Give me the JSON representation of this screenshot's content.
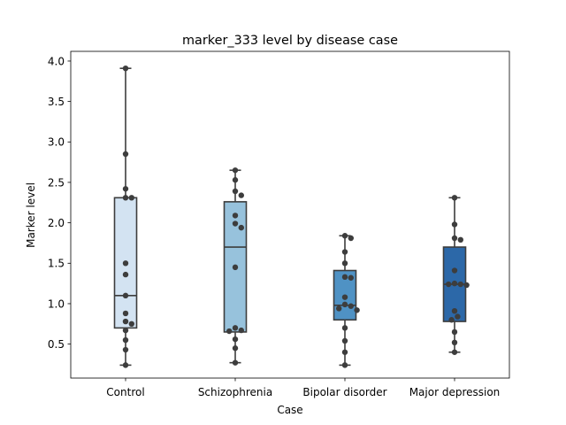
{
  "chart_data": {
    "type": "box",
    "title": "marker_333 level by disease case",
    "xlabel": "Case",
    "ylabel": "Marker level",
    "ylim": [
      0.08,
      4.12
    ],
    "yticks": [
      0.5,
      1.0,
      1.5,
      2.0,
      2.5,
      3.0,
      3.5,
      4.0
    ],
    "yticklabels": [
      "0.5",
      "1.0",
      "1.5",
      "2.0",
      "2.5",
      "3.0",
      "3.5",
      "4.0"
    ],
    "grid": false,
    "categories": [
      "Control",
      "Schizophrenia",
      "Bipolar disorder",
      "Major depression"
    ],
    "colors": [
      "#d3e3f2",
      "#97c2dc",
      "#4f92c4",
      "#2c68a8"
    ],
    "boxes": [
      {
        "category": "Control",
        "whisker_low": 0.24,
        "q1": 0.7,
        "median": 1.1,
        "q3": 2.31,
        "whisker_high": 3.91
      },
      {
        "category": "Schizophrenia",
        "whisker_low": 0.27,
        "q1": 0.65,
        "median": 1.7,
        "q3": 2.26,
        "whisker_high": 2.65
      },
      {
        "category": "Bipolar disorder",
        "whisker_low": 0.24,
        "q1": 0.8,
        "median": 0.98,
        "q3": 1.41,
        "whisker_high": 1.84
      },
      {
        "category": "Major depression",
        "whisker_low": 0.4,
        "q1": 0.78,
        "median": 1.24,
        "q3": 1.7,
        "whisker_high": 2.31
      }
    ],
    "points": [
      {
        "category": "Control",
        "values": [
          3.91,
          2.85,
          2.42,
          2.31,
          2.31,
          1.5,
          1.36,
          1.1,
          0.88,
          0.78,
          0.75,
          0.67,
          0.55,
          0.43,
          0.24
        ]
      },
      {
        "category": "Schizophrenia",
        "values": [
          2.65,
          2.53,
          2.39,
          2.34,
          2.09,
          1.99,
          1.94,
          1.45,
          0.7,
          0.67,
          0.66,
          0.56,
          0.45,
          0.27
        ]
      },
      {
        "category": "Bipolar disorder",
        "values": [
          1.84,
          1.81,
          1.64,
          1.5,
          1.33,
          1.32,
          1.08,
          0.99,
          0.97,
          0.94,
          0.92,
          0.7,
          0.54,
          0.4,
          0.24
        ]
      },
      {
        "category": "Major depression",
        "values": [
          2.31,
          1.98,
          1.81,
          1.79,
          1.41,
          1.25,
          1.24,
          1.24,
          1.23,
          0.91,
          0.84,
          0.8,
          0.65,
          0.52,
          0.4
        ]
      }
    ]
  }
}
